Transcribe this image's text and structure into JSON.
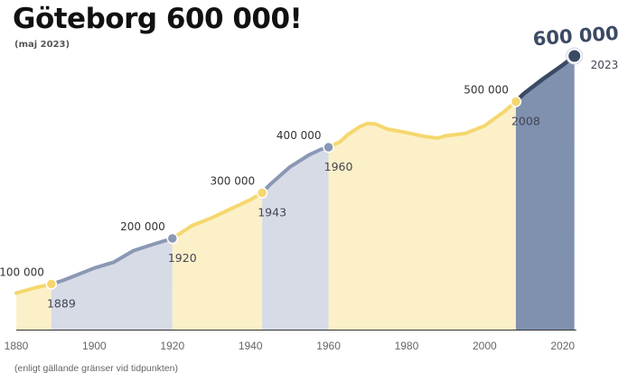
{
  "chart_data": {
    "type": "area",
    "title": "Göteborg 600 000!",
    "subtitle": "(maj 2023)",
    "footnote": "(enligt gällande gränser vid tidpunkten)",
    "xlabel": "",
    "ylabel": "",
    "xlim": [
      1880,
      2024
    ],
    "ylim": [
      0,
      600000
    ],
    "x_ticks": [
      1880,
      1900,
      1920,
      1940,
      1960,
      1980,
      2000,
      2020
    ],
    "grid": false,
    "colors": {
      "yellow_fill": "#fbf0c8",
      "yellow_line": "#f5d76e",
      "grey_fill": "#d6dbe6",
      "grey_line": "#8a98b4",
      "dark_fill": "#7f91ae",
      "dark_line": "#3b4a64"
    },
    "series": [
      {
        "values": [
          {
            "x": 1880,
            "y": 80000
          },
          {
            "x": 1885,
            "y": 92000
          },
          {
            "x": 1889,
            "y": 100000
          },
          {
            "x": 1892,
            "y": 108000
          },
          {
            "x": 1895,
            "y": 118000
          },
          {
            "x": 1900,
            "y": 135000
          },
          {
            "x": 1905,
            "y": 148000
          },
          {
            "x": 1910,
            "y": 173000
          },
          {
            "x": 1915,
            "y": 187000
          },
          {
            "x": 1920,
            "y": 200000
          },
          {
            "x": 1925,
            "y": 228000
          },
          {
            "x": 1930,
            "y": 245000
          },
          {
            "x": 1935,
            "y": 265000
          },
          {
            "x": 1940,
            "y": 285000
          },
          {
            "x": 1943,
            "y": 300000
          },
          {
            "x": 1945,
            "y": 318000
          },
          {
            "x": 1950,
            "y": 356000
          },
          {
            "x": 1955,
            "y": 383000
          },
          {
            "x": 1958,
            "y": 395000
          },
          {
            "x": 1960,
            "y": 400000
          },
          {
            "x": 1963,
            "y": 412000
          },
          {
            "x": 1965,
            "y": 428000
          },
          {
            "x": 1968,
            "y": 445000
          },
          {
            "x": 1970,
            "y": 452000
          },
          {
            "x": 1972,
            "y": 451000
          },
          {
            "x": 1975,
            "y": 440000
          },
          {
            "x": 1980,
            "y": 432000
          },
          {
            "x": 1985,
            "y": 423000
          },
          {
            "x": 1988,
            "y": 420000
          },
          {
            "x": 1990,
            "y": 425000
          },
          {
            "x": 1995,
            "y": 430000
          },
          {
            "x": 2000,
            "y": 447000
          },
          {
            "x": 2005,
            "y": 478000
          },
          {
            "x": 2008,
            "y": 500000
          },
          {
            "x": 2010,
            "y": 517000
          },
          {
            "x": 2015,
            "y": 550000
          },
          {
            "x": 2020,
            "y": 580000
          },
          {
            "x": 2023,
            "y": 600000
          }
        ]
      }
    ],
    "bands": [
      {
        "from": 1880,
        "to": 1889,
        "style": "yellow"
      },
      {
        "from": 1889,
        "to": 1920,
        "style": "grey"
      },
      {
        "from": 1920,
        "to": 1943,
        "style": "yellow"
      },
      {
        "from": 1943,
        "to": 1960,
        "style": "grey"
      },
      {
        "from": 1960,
        "to": 2008,
        "style": "yellow"
      },
      {
        "from": 2008,
        "to": 2023,
        "style": "dark"
      }
    ],
    "milestones": [
      {
        "x": 1889,
        "y": 100000,
        "value_label": "100 000",
        "year_label": "1889",
        "dot": "yellow"
      },
      {
        "x": 1920,
        "y": 200000,
        "value_label": "200 000",
        "year_label": "1920",
        "dot": "grey"
      },
      {
        "x": 1943,
        "y": 300000,
        "value_label": "300 000",
        "year_label": "1943",
        "dot": "yellow"
      },
      {
        "x": 1960,
        "y": 400000,
        "value_label": "400 000",
        "year_label": "1960",
        "dot": "grey"
      },
      {
        "x": 2008,
        "y": 500000,
        "value_label": "500 000",
        "year_label": "2008",
        "dot": "yellow"
      },
      {
        "x": 2023,
        "y": 600000,
        "value_label": "600 000",
        "year_label": "2023",
        "dot": "dark"
      }
    ]
  }
}
